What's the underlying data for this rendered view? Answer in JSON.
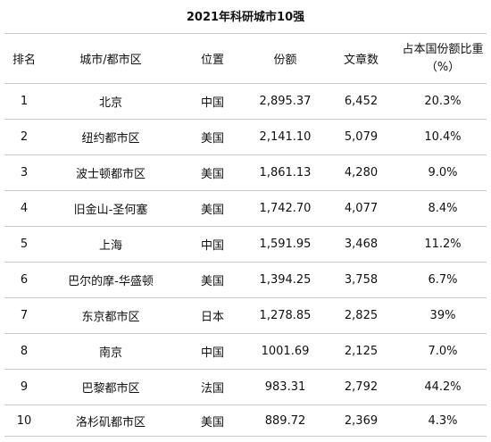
{
  "title": "2021年科研城市10强",
  "headers": {
    "rank": "排名",
    "city": "城市/都市区",
    "location": "位置",
    "share": "份额",
    "articles": "文章数",
    "pct": "占本国份额比重（%）"
  },
  "rows": [
    {
      "rank": "1",
      "city": "北京",
      "location": "中国",
      "share": "2,895.37",
      "articles": "6,452",
      "pct": "20.3%"
    },
    {
      "rank": "2",
      "city": "纽约都市区",
      "location": "美国",
      "share": "2,141.10",
      "articles": "5,079",
      "pct": "10.4%"
    },
    {
      "rank": "3",
      "city": "波士顿都市区",
      "location": "美国",
      "share": "1,861.13",
      "articles": "4,280",
      "pct": "9.0%"
    },
    {
      "rank": "4",
      "city": "旧金山-圣何塞",
      "location": "美国",
      "share": "1,742.70",
      "articles": "4,077",
      "pct": "8.4%"
    },
    {
      "rank": "5",
      "city": "上海",
      "location": "中国",
      "share": "1,591.95",
      "articles": "3,468",
      "pct": "11.2%"
    },
    {
      "rank": "6",
      "city": "巴尔的摩-华盛顿",
      "location": "美国",
      "share": "1,394.25",
      "articles": "3,758",
      "pct": "6.7%"
    },
    {
      "rank": "7",
      "city": "东京都市区",
      "location": "日本",
      "share": "1,278.85",
      "articles": "2,825",
      "pct": "39%"
    },
    {
      "rank": "8",
      "city": "南京",
      "location": "中国",
      "share": "1001.69",
      "articles": "2,125",
      "pct": "7.0%"
    },
    {
      "rank": "9",
      "city": "巴黎都市区",
      "location": "法国",
      "share": "983.31",
      "articles": "2,792",
      "pct": "44.2%"
    },
    {
      "rank": "10",
      "city": "洛杉矶都市区",
      "location": "美国",
      "share": "889.72",
      "articles": "2,369",
      "pct": "4.3%"
    }
  ]
}
